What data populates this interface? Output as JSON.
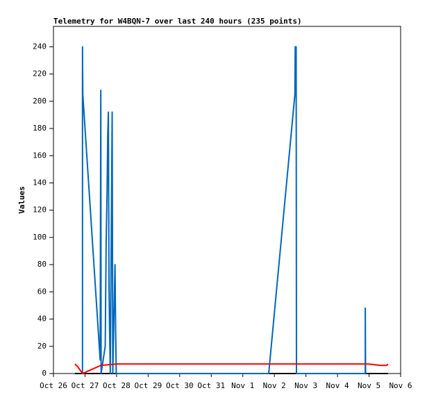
{
  "chart_data": {
    "type": "line",
    "title": "Telemetry for W4BQN-7 over last 240 hours (235 points)",
    "y_label": "Values",
    "xlim": [
      0,
      11
    ],
    "xticks": [
      {
        "value": 0,
        "label": "Oct 26"
      },
      {
        "value": 1,
        "label": "Oct 27"
      },
      {
        "value": 2,
        "label": "Oct 28"
      },
      {
        "value": 3,
        "label": "Oct 29"
      },
      {
        "value": 4,
        "label": "Oct 30"
      },
      {
        "value": 5,
        "label": "Oct 31"
      },
      {
        "value": 6,
        "label": "Nov 1"
      },
      {
        "value": 7,
        "label": "Nov 2"
      },
      {
        "value": 8,
        "label": "Nov 3"
      },
      {
        "value": 9,
        "label": "Nov 4"
      },
      {
        "value": 10,
        "label": "Nov 5"
      },
      {
        "value": 11,
        "label": "Nov 6"
      }
    ],
    "ylim": [
      0,
      255
    ],
    "yticks": [
      0,
      20,
      40,
      60,
      80,
      100,
      120,
      140,
      160,
      180,
      200,
      220,
      240
    ],
    "grid": false,
    "series": [
      {
        "color": "#000000",
        "x": [
          0.68,
          10.6
        ],
        "values": [
          0,
          0
        ]
      },
      {
        "color": "#0066bb",
        "x": [
          0.92,
          0.92,
          0.93,
          1.48,
          1.5,
          1.51,
          1.64,
          1.67,
          1.7,
          1.72,
          1.74,
          1.76,
          1.78,
          1.8,
          1.86,
          1.88,
          1.95,
          1.97,
          1.99,
          6.82,
          7.65,
          7.66,
          7.69,
          7.7,
          9.88,
          9.88,
          9.89
        ],
        "values": [
          0,
          240,
          205,
          10,
          208,
          0,
          20,
          97,
          135,
          175,
          192,
          65,
          30,
          0,
          192,
          0,
          80,
          32,
          0,
          0,
          205,
          240,
          240,
          0,
          0,
          48,
          0
        ]
      },
      {
        "color": "#ff0000",
        "x": [
          0.68,
          0.77,
          0.92,
          1.5,
          2.0,
          9.97,
          10.36,
          10.56,
          10.6
        ],
        "values": [
          7,
          5,
          0,
          6,
          7,
          7,
          6,
          6,
          7
        ]
      }
    ]
  }
}
